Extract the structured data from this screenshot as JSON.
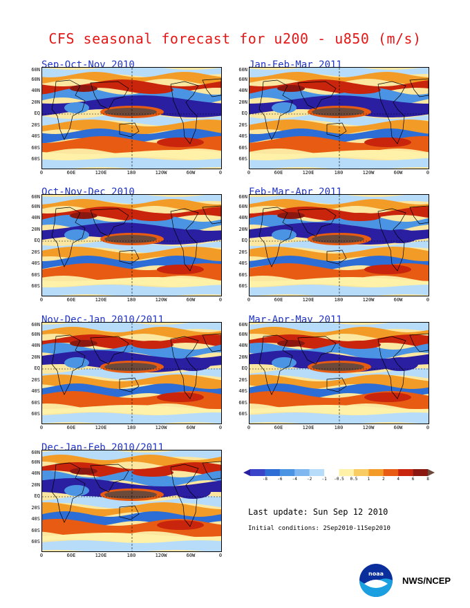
{
  "title": "CFS seasonal forecast for u200 - u850 (m/s)",
  "panels": [
    {
      "title": "Sep-Oct-Nov 2010",
      "shift": 0
    },
    {
      "title": "Jan-Feb-Mar 2011",
      "shift": 1
    },
    {
      "title": "Oct-Nov-Dec 2010",
      "shift": 2
    },
    {
      "title": "Feb-Mar-Apr 2011",
      "shift": 3
    },
    {
      "title": "Nov-Dec-Jan 2010/2011",
      "shift": 4
    },
    {
      "title": "Mar-Apr-May 2011",
      "shift": 5
    },
    {
      "title": "Dec-Jan-Feb 2010/2011",
      "shift": 6
    }
  ],
  "lat_labels": [
    "60N",
    "60N",
    "40N",
    "20N",
    "EQ",
    "20S",
    "40S",
    "60S",
    "60S"
  ],
  "lon_labels": [
    "0",
    "60E",
    "120E",
    "180",
    "120W",
    "60W",
    "0"
  ],
  "colorbar": {
    "labels": [
      "-8",
      "-6",
      "-4",
      "-2",
      "-1",
      "-0.5",
      "0.5",
      "1",
      "2",
      "4",
      "6",
      "8"
    ],
    "colors": [
      "#2a1fa0",
      "#3a44c8",
      "#2c6ed6",
      "#4b94e4",
      "#7fb8f0",
      "#b6dcfa",
      "#ffffff",
      "#fff2a8",
      "#f8cc63",
      "#f29b26",
      "#e85b12",
      "#c8250c",
      "#8a1810",
      "#6b4a3c"
    ]
  },
  "last_update": "Last update: Sun Sep 12 2010",
  "initial_conditions": "Initial conditions: 2Sep2010-11Sep2010",
  "logo_text": "noaa",
  "credit": "NWS/NCEP"
}
